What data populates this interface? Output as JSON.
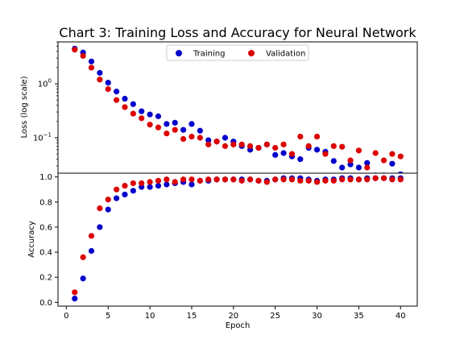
{
  "chart_data": {
    "type": "scatter",
    "title": "Chart 3: Training Loss and Accuracy for Neural Network",
    "xlabel": "Epoch",
    "xlim": [
      -1,
      42
    ],
    "xticks": [
      0,
      5,
      10,
      15,
      20,
      25,
      30,
      35,
      40
    ],
    "x": [
      1,
      2,
      3,
      4,
      5,
      6,
      7,
      8,
      9,
      10,
      11,
      12,
      13,
      14,
      15,
      16,
      17,
      18,
      19,
      20,
      21,
      22,
      23,
      24,
      25,
      26,
      27,
      28,
      29,
      30,
      31,
      32,
      33,
      34,
      35,
      36,
      37,
      38,
      39,
      40
    ],
    "colors": {
      "Training": "#0000cc",
      "Validation": "#dd0000"
    },
    "legend": {
      "position": "top-center",
      "entries": [
        "Training",
        "Validation"
      ]
    },
    "loss": {
      "ylabel": "Loss (log scale)",
      "yscale": "log",
      "ylim": [
        0.022,
        6.0
      ],
      "ytick_labels": [
        "10^0",
        "10^−1"
      ],
      "series": [
        {
          "name": "Training",
          "values": [
            4.5,
            3.8,
            2.6,
            1.6,
            1.05,
            0.72,
            0.53,
            0.42,
            0.31,
            0.27,
            0.25,
            0.18,
            0.19,
            0.14,
            0.18,
            0.135,
            0.09,
            0.085,
            0.1,
            0.085,
            0.07,
            0.06,
            0.065,
            0.075,
            0.048,
            0.052,
            0.045,
            0.04,
            0.065,
            0.06,
            0.055,
            0.037,
            0.028,
            0.032,
            0.028,
            0.034,
            0.02,
            0.02,
            0.033,
            0.021
          ]
        },
        {
          "name": "Validation",
          "values": [
            4.3,
            3.3,
            2.0,
            1.2,
            0.8,
            0.5,
            0.37,
            0.28,
            0.23,
            0.175,
            0.155,
            0.12,
            0.14,
            0.095,
            0.105,
            0.1,
            0.075,
            0.085,
            0.07,
            0.075,
            0.075,
            0.07,
            0.065,
            0.075,
            0.065,
            0.075,
            0.05,
            0.105,
            0.07,
            0.105,
            0.05,
            0.07,
            0.068,
            0.038,
            0.058,
            0.028,
            0.052,
            0.038,
            0.05,
            0.045
          ]
        }
      ]
    },
    "accuracy": {
      "ylabel": "Accuracy",
      "ylim": [
        -0.03,
        1.03
      ],
      "yticks": [
        0.0,
        0.2,
        0.4,
        0.6,
        0.8,
        1.0
      ],
      "ytick_labels": [
        "0.0",
        "0.2",
        "0.4",
        "0.6",
        "0.8",
        "1.0"
      ],
      "series": [
        {
          "name": "Training",
          "values": [
            0.03,
            0.19,
            0.41,
            0.6,
            0.74,
            0.83,
            0.86,
            0.89,
            0.92,
            0.92,
            0.93,
            0.94,
            0.95,
            0.96,
            0.94,
            0.97,
            0.97,
            0.98,
            0.98,
            0.98,
            0.98,
            0.98,
            0.97,
            0.97,
            0.98,
            0.99,
            0.99,
            0.99,
            0.98,
            0.97,
            0.98,
            0.98,
            0.99,
            0.99,
            0.98,
            0.99,
            0.99,
            0.99,
            0.99,
            0.99
          ]
        },
        {
          "name": "Validation",
          "values": [
            0.08,
            0.36,
            0.53,
            0.75,
            0.82,
            0.9,
            0.93,
            0.95,
            0.95,
            0.96,
            0.97,
            0.98,
            0.96,
            0.98,
            0.98,
            0.97,
            0.98,
            0.98,
            0.98,
            0.98,
            0.97,
            0.98,
            0.97,
            0.96,
            0.98,
            0.98,
            0.98,
            0.97,
            0.97,
            0.96,
            0.97,
            0.97,
            0.98,
            0.98,
            0.98,
            0.98,
            0.99,
            0.99,
            0.98,
            0.98
          ]
        }
      ]
    }
  }
}
